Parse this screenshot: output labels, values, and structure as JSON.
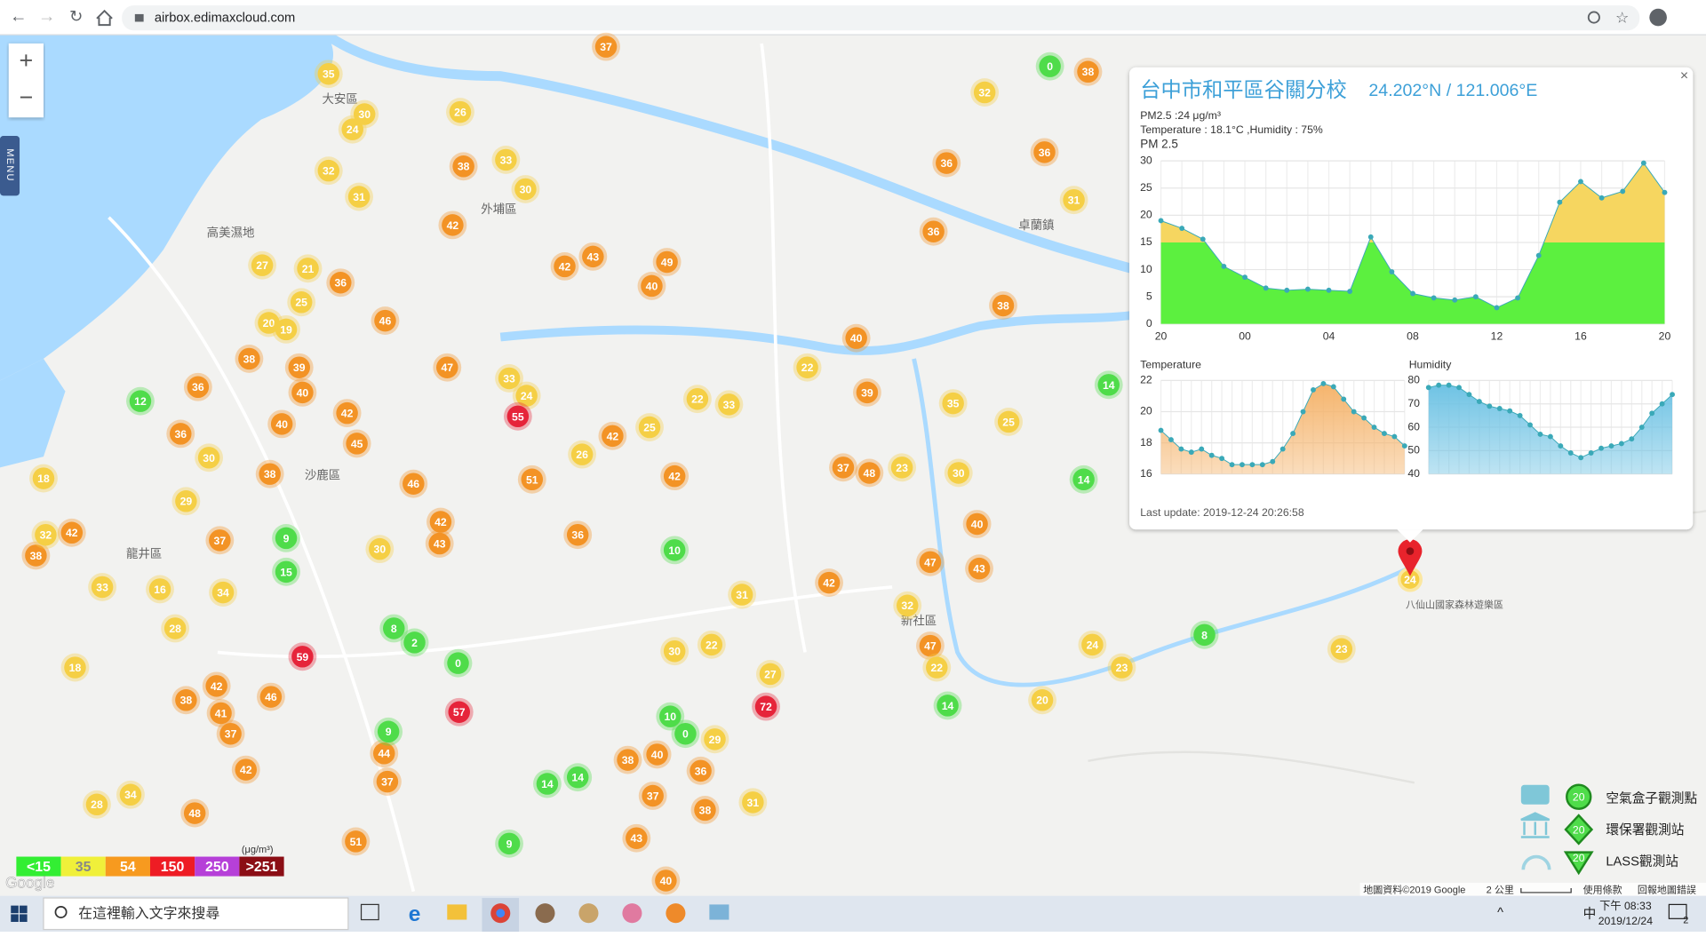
{
  "browser": {
    "url": "airbox.edimaxcloud.com"
  },
  "map": {
    "zoom_in": "+",
    "zoom_out": "−",
    "menu": "MENU",
    "google": "Google",
    "places": [
      "大安區",
      "外埔區",
      "沙鹿區",
      "龍井區",
      "卓蘭鎮",
      "新社區",
      "八仙山國家森林遊樂區",
      "高美濕地"
    ],
    "attribution": "地圖資料©2019 Google",
    "scale": "2 公里",
    "terms": "使用條款",
    "report": "回報地圖錯誤"
  },
  "map_markers": [
    {
      "color": "#f39325",
      "values": [
        37,
        38,
        38,
        42,
        36,
        46,
        38,
        39,
        40,
        40,
        36,
        36,
        38,
        42,
        38,
        37,
        42,
        43,
        49,
        40,
        47,
        45,
        42,
        46,
        43,
        42,
        51,
        42,
        42,
        36,
        36,
        36,
        36,
        38,
        40,
        39,
        37,
        48,
        40,
        43,
        47,
        42,
        47,
        42,
        41,
        37,
        46,
        42,
        38,
        48,
        37,
        51,
        44,
        38,
        40,
        37,
        43,
        40,
        36,
        38
      ]
    },
    {
      "color": "#f5cf45",
      "values": [
        35,
        30,
        24,
        26,
        32,
        31,
        33,
        30,
        32,
        31,
        21,
        27,
        25,
        20,
        19,
        33,
        24,
        29,
        30,
        18,
        32,
        33,
        16,
        34,
        28,
        30,
        22,
        33,
        25,
        26,
        22,
        35,
        25,
        23,
        30,
        31,
        32,
        22,
        27,
        24,
        23,
        23,
        20,
        29,
        31,
        34,
        28,
        18,
        30,
        22
      ]
    },
    {
      "color": "#4fdc4a",
      "values": [
        0,
        12,
        14,
        14,
        9,
        15,
        10,
        8,
        14,
        9,
        0,
        10,
        0,
        14,
        14,
        9,
        2,
        8
      ]
    },
    {
      "color": "#e6243a",
      "values": [
        55,
        59,
        72,
        57
      ]
    }
  ],
  "popup": {
    "title": "台中市和平區谷關分校",
    "coords": "24.202°N / 121.006°E",
    "pm": "PM2.5 :24 μg/m³",
    "weather": "Temperature : 18.1°C ,Humidity : 75%",
    "last_update": "Last update: 2019-12-24 20:26:58",
    "close": "×",
    "marker": "24"
  },
  "chart_data": [
    {
      "type": "area",
      "title": "PM 2.5",
      "color": "#5cf03f",
      "color_high": "#f6d660",
      "dot_color": "#3aa9b8",
      "categories": [
        "20",
        null,
        null,
        null,
        "00",
        null,
        null,
        null,
        "04",
        null,
        null,
        null,
        "08",
        null,
        null,
        null,
        "12",
        null,
        null,
        null,
        "16",
        null,
        null,
        null,
        "20"
      ],
      "values": [
        19,
        17.6,
        15.6,
        10.6,
        8.6,
        6.6,
        6.2,
        6.4,
        6.2,
        6,
        16,
        9.6,
        5.6,
        4.8,
        4.4,
        5,
        3,
        4.8,
        12.6,
        22.4,
        26.2,
        23.2,
        24.4,
        29.6,
        24.2
      ],
      "ylim": [
        0,
        30
      ],
      "yticks": [
        0,
        5,
        10,
        15,
        20,
        25,
        30
      ],
      "grid": true
    },
    {
      "type": "area",
      "title": "Temperature",
      "color": "#f5b46c",
      "dot_color": "#3aa9b8",
      "values": [
        18.8,
        18.2,
        17.6,
        17.4,
        17.6,
        17.2,
        17,
        16.6,
        16.6,
        16.6,
        16.6,
        16.8,
        17.6,
        18.6,
        20,
        21.4,
        21.8,
        21.6,
        20.8,
        20,
        19.6,
        19,
        18.6,
        18.4,
        17.8
      ],
      "ylim": [
        16,
        22
      ],
      "yticks": [
        16,
        18,
        20,
        22
      ],
      "grid": true
    },
    {
      "type": "area",
      "title": "Humidity",
      "color": "#6fc3e4",
      "dot_color": "#3aa9b8",
      "values": [
        77,
        78,
        78,
        77,
        74,
        71,
        69,
        68,
        67,
        65,
        61,
        57,
        56,
        52,
        49,
        47,
        49,
        51,
        52,
        53,
        55,
        60,
        66,
        70,
        74
      ],
      "ylim": [
        40,
        80
      ],
      "yticks": [
        40,
        50,
        60,
        70,
        80
      ],
      "grid": true
    }
  ],
  "pm_legend": {
    "unit": "(μg/m³)",
    "items": [
      {
        "label": "<15",
        "color": "#33ee33"
      },
      {
        "label": "35",
        "color": "#f0f03a"
      },
      {
        "label": "54",
        "color": "#f79a1f"
      },
      {
        "label": "150",
        "color": "#ee1c24"
      },
      {
        "label": "250",
        "color": "#b640d8"
      },
      {
        "label": ">251",
        "color": "#8b0e15"
      }
    ]
  },
  "station_legend": [
    {
      "label": "空氣盒子觀測點",
      "marker": "20"
    },
    {
      "label": "環保署觀測站",
      "marker": "20"
    },
    {
      "label": "LASS觀測站",
      "marker": "20"
    }
  ],
  "taskbar": {
    "search": "在這裡輸入文字來搜尋",
    "time": "下午 08:33",
    "date": "2019/12/24",
    "notify": "2",
    "ime": "中"
  }
}
